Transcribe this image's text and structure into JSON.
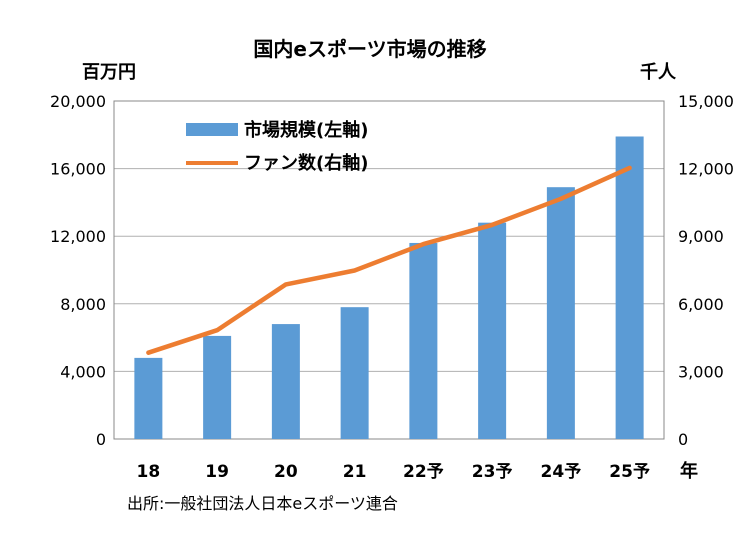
{
  "chart_data": {
    "type": "bar",
    "title": "国内eスポーツ市場の推移",
    "categories": [
      "18",
      "19",
      "20",
      "21",
      "22予",
      "23予",
      "24予",
      "25予"
    ],
    "xlabel": "年",
    "y_left_label": "百万円",
    "y_right_label": "千人",
    "ylim_left": [
      0,
      20000
    ],
    "ylim_right": [
      0,
      15000
    ],
    "y_left_ticks": [
      "0",
      "4,000",
      "8,000",
      "12,000",
      "16,000",
      "20,000"
    ],
    "y_right_ticks": [
      "0",
      "3,000",
      "6,000",
      "9,000",
      "12,000",
      "15,000"
    ],
    "grid": true,
    "legend_position": "top-left",
    "series": [
      {
        "name": "市場規模(左軸)",
        "type": "bar",
        "axis": "left",
        "color": "#5b9bd5",
        "values": [
          4800,
          6100,
          6800,
          7800,
          11600,
          12800,
          14900,
          17900
        ]
      },
      {
        "name": "ファン数(右軸)",
        "type": "line",
        "axis": "right",
        "color": "#ed7d31",
        "values": [
          3830,
          4830,
          6860,
          7480,
          8650,
          9500,
          10660,
          12030
        ]
      }
    ],
    "source": "出所:一般社団法人日本eスポーツ連合"
  }
}
